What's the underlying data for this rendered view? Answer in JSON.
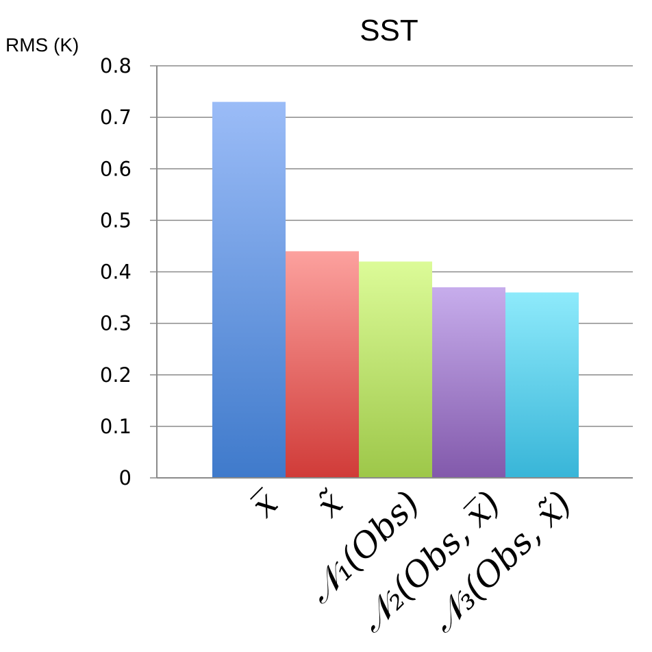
{
  "chart_data": {
    "type": "bar",
    "title": "SST",
    "ylabel": "RMS (K)",
    "xlabel": "",
    "ylim": [
      0,
      0.8
    ],
    "yticks": [
      "0",
      "0.1",
      "0.2",
      "0.3",
      "0.4",
      "0.5",
      "0.6",
      "0.7",
      "0.8"
    ],
    "grid": true,
    "categories": [
      "x̅",
      "x̃",
      "𝒩₁(Obs)",
      "𝒩₂(Obs, x̅)",
      "𝒩₃(Obs, x̃)"
    ],
    "values": [
      0.73,
      0.44,
      0.42,
      0.37,
      0.36
    ],
    "colors": [
      [
        "#9bbcf7",
        "#3f7acb"
      ],
      [
        "#fca19e",
        "#d03b38"
      ],
      [
        "#dcfb98",
        "#9dc749"
      ],
      [
        "#c7adec",
        "#8259ab"
      ],
      [
        "#8eeafb",
        "#38b5d8"
      ]
    ]
  }
}
